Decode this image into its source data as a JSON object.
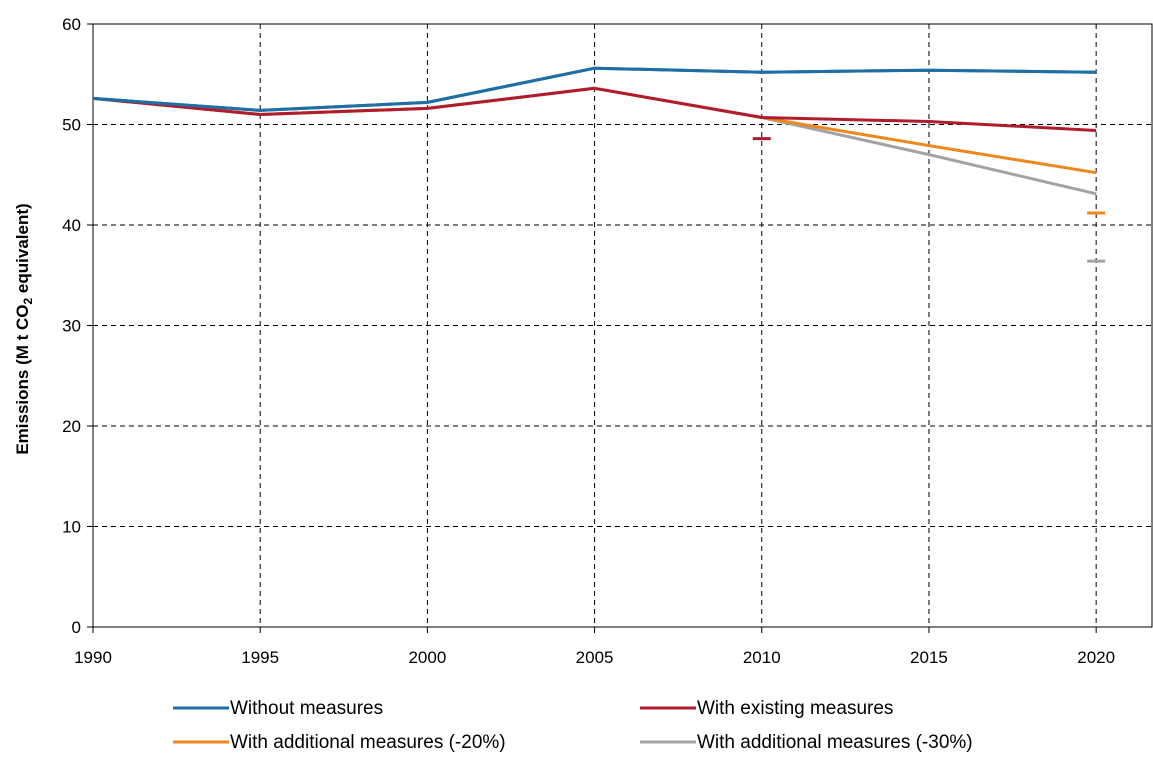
{
  "chart_data": {
    "type": "line",
    "ylabel_main": "Emissions (M t CO",
    "ylabel_sub": "2",
    "ylabel_tail": " equivalent)",
    "x": [
      1990,
      1995,
      2000,
      2005,
      2010,
      2015,
      2020
    ],
    "x_tick_labels": [
      "1990",
      "1995",
      "2000",
      "2005",
      "2010",
      "2015",
      "2020"
    ],
    "y_tick_labels": [
      "0",
      "10",
      "20",
      "30",
      "40",
      "50",
      "60"
    ],
    "xlim": [
      1990,
      2021.7
    ],
    "ylim": [
      0,
      60
    ],
    "grid": true,
    "legend_position": "bottom",
    "series": [
      {
        "name": "Without measures",
        "color": "#1f6fa5",
        "x": [
          1990,
          1995,
          2000,
          2005,
          2010,
          2015,
          2020
        ],
        "values": [
          52.6,
          51.4,
          52.2,
          55.6,
          55.2,
          55.4,
          55.2
        ]
      },
      {
        "name": "With existing measures",
        "color": "#b01c2e",
        "x": [
          1990,
          1995,
          2000,
          2005,
          2010,
          2015,
          2020
        ],
        "values": [
          52.6,
          51.0,
          51.6,
          53.6,
          50.7,
          50.3,
          49.4
        ]
      },
      {
        "name": "With additional measures (-20%)",
        "color": "#f0861e",
        "x": [
          1990,
          1995,
          2000,
          2005,
          2010,
          2015,
          2020
        ],
        "values": [
          52.6,
          51.0,
          51.6,
          53.6,
          50.7,
          47.9,
          45.2
        ]
      },
      {
        "name": "With additional measures (-30%)",
        "color": "#a3a3a3",
        "x": [
          1990,
          1995,
          2000,
          2005,
          2010,
          2015,
          2020
        ],
        "values": [
          52.6,
          51.0,
          51.6,
          53.6,
          50.7,
          47.0,
          43.1
        ]
      }
    ],
    "target_markers": [
      {
        "series": "With existing measures",
        "x": 2010,
        "y": 48.6,
        "color": "#b01c2e"
      },
      {
        "series": "With additional measures (-20%)",
        "x": 2020,
        "y": 41.2,
        "color": "#f0861e"
      },
      {
        "series": "With additional measures (-30%)",
        "x": 2020,
        "y": 36.4,
        "color": "#a3a3a3"
      }
    ]
  }
}
